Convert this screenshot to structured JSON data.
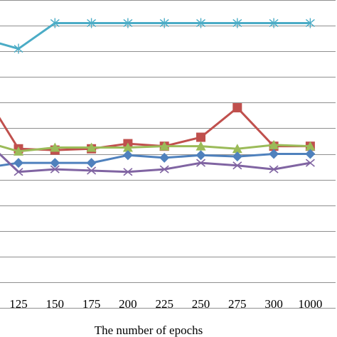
{
  "chart_data": {
    "type": "line",
    "xlabel": "The number of epochs",
    "categories": [
      "125",
      "150",
      "175",
      "200",
      "225",
      "250",
      "275",
      "300",
      "1000"
    ],
    "ylim": [
      0,
      12
    ],
    "grid": true,
    "series": [
      {
        "marker": "star",
        "color": "#4bacc6",
        "lead_in": 10.4,
        "values": [
          10.1,
          11.1,
          11.1,
          11.1,
          11.1,
          11.1,
          11.1,
          11.1,
          11.1
        ]
      },
      {
        "marker": "square",
        "color": "#c0504d",
        "lead_in": 7.9,
        "values": [
          6.2,
          6.15,
          6.2,
          6.4,
          6.3,
          6.65,
          7.8,
          6.3,
          6.3
        ]
      },
      {
        "marker": "triangle",
        "color": "#9bbb59",
        "lead_in": 6.4,
        "values": [
          6.1,
          6.25,
          6.25,
          6.25,
          6.3,
          6.3,
          6.2,
          6.35,
          6.3
        ]
      },
      {
        "marker": "diamond",
        "color": "#4f81bd",
        "lead_in": 5.5,
        "values": [
          5.65,
          5.65,
          5.65,
          5.95,
          5.85,
          5.95,
          5.9,
          6.0,
          6.0
        ]
      },
      {
        "marker": "x",
        "color": "#8064a2",
        "lead_in": 6.3,
        "values": [
          5.3,
          5.4,
          5.35,
          5.3,
          5.4,
          5.65,
          5.55,
          5.4,
          5.65
        ]
      }
    ]
  }
}
